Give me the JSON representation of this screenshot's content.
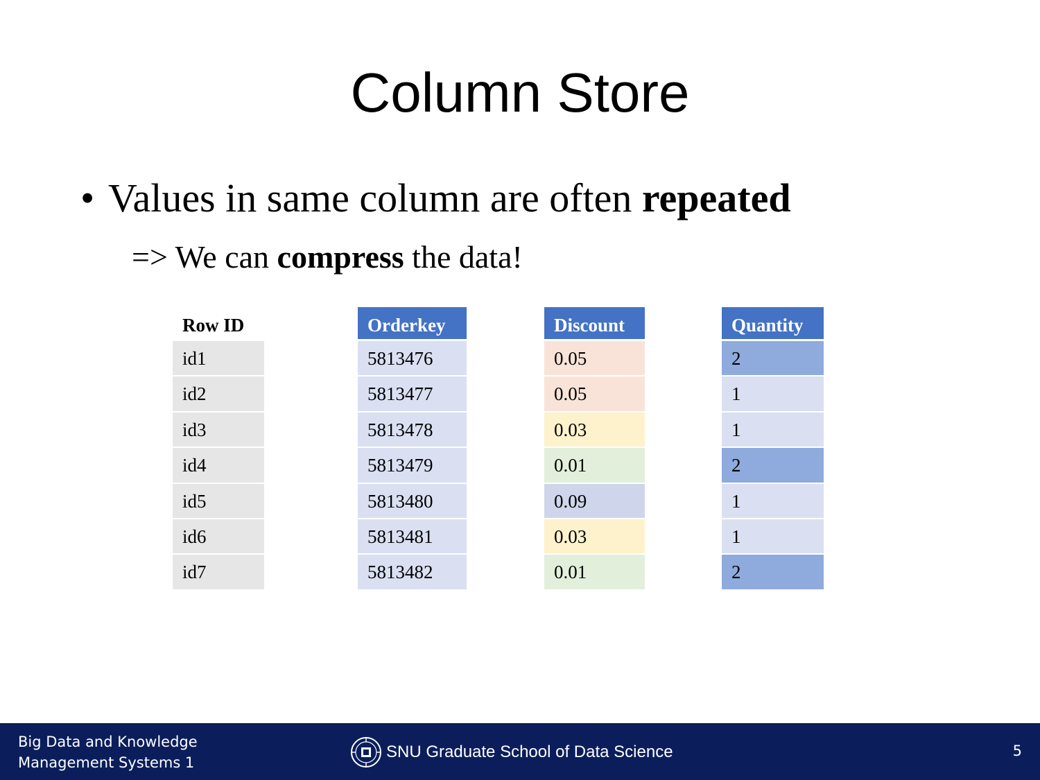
{
  "slide": {
    "title": "Column Store",
    "bullet1": {
      "text": "Values in same column are often ",
      "bold": "repeated",
      "marker": "•"
    },
    "bullet2": {
      "prefix": "=> We can ",
      "bold": "compress",
      "suffix": " the data!"
    }
  },
  "table": {
    "rowid": {
      "header": "Row ID",
      "values": [
        "id1",
        "id2",
        "id3",
        "id4",
        "id5",
        "id6",
        "id7"
      ]
    },
    "orderkey": {
      "header": "Orderkey",
      "values": [
        "5813476",
        "5813477",
        "5813478",
        "5813479",
        "5813480",
        "5813481",
        "5813482"
      ]
    },
    "discount": {
      "header": "Discount",
      "values": [
        "0.05",
        "0.05",
        "0.03",
        "0.01",
        "0.09",
        "0.03",
        "0.01"
      ],
      "colors": [
        "#f9e3d8",
        "#f9e3d8",
        "#fef2cc",
        "#e2efda",
        "#cfd5ea",
        "#fef2cc",
        "#e2efda"
      ]
    },
    "quantity": {
      "header": "Quantity",
      "values": [
        "2",
        "1",
        "1",
        "2",
        "1",
        "1",
        "2"
      ],
      "shades": [
        "dark",
        "light",
        "light",
        "dark",
        "light",
        "light",
        "dark"
      ]
    }
  },
  "footer": {
    "course_line1": "Big Data and Knowledge",
    "course_line2": "Management Systems 1",
    "school": "SNU Graduate School of Data Science",
    "logo_icon": "snu-emblem-icon",
    "page_number": "5"
  }
}
